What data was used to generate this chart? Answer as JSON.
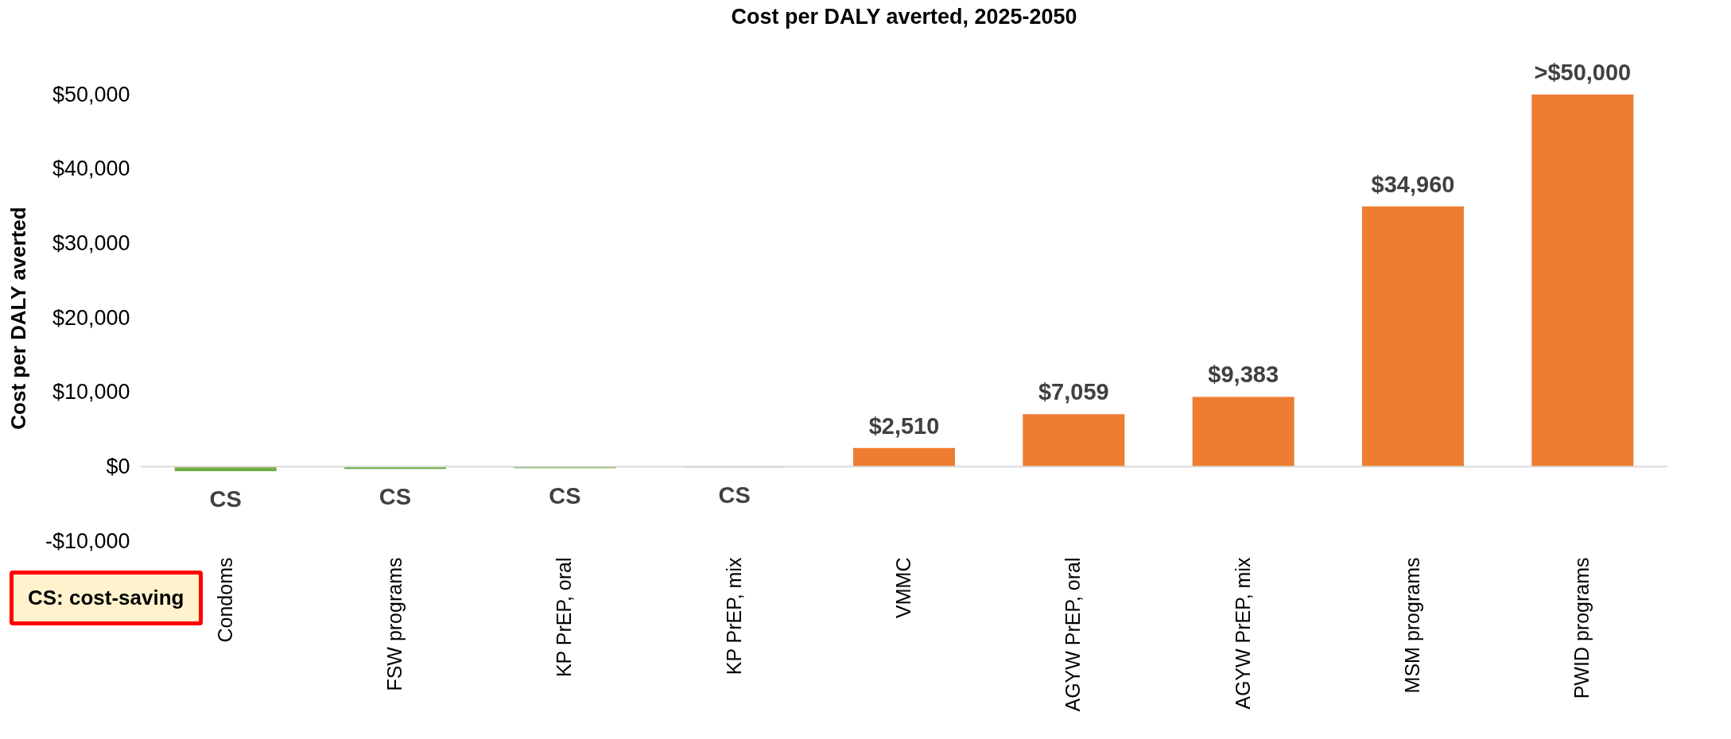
{
  "chart_data": {
    "type": "bar",
    "title": "Cost per DALY averted, 2025-2050",
    "ylabel": "Cost per DALY averted",
    "categories": [
      "Condoms",
      "FSW programs",
      "KP PrEP, oral",
      "KP PrEP, mix",
      "VMMC",
      "AGYW PrEP, oral",
      "AGYW PrEP, mix",
      "MSM programs",
      "PWID programs"
    ],
    "values": [
      -600,
      -300,
      -200,
      -100,
      2510,
      7059,
      9383,
      34960,
      50000
    ],
    "colors": [
      "#70ad47",
      "#70ad47",
      "#70ad47",
      "#70ad47",
      "#ed7d31",
      "#ed7d31",
      "#ed7d31",
      "#ed7d31",
      "#ed7d31"
    ],
    "value_labels": [
      "CS",
      "CS",
      "CS",
      "CS",
      "$2,510",
      "$7,059",
      "$9,383",
      "$34,960",
      ">$50,000"
    ],
    "ylim": [
      -10000,
      50000
    ],
    "yticks": [
      {
        "value": -10000,
        "label": "-$10,000"
      },
      {
        "value": 0,
        "label": "$0"
      },
      {
        "value": 10000,
        "label": "$10,000"
      },
      {
        "value": 20000,
        "label": "$20,000"
      },
      {
        "value": 30000,
        "label": "$30,000"
      },
      {
        "value": 40000,
        "label": "$40,000"
      },
      {
        "value": 50000,
        "label": "$50,000"
      }
    ],
    "grid": false,
    "ref_lines": [
      {
        "axis": "y",
        "value": 0,
        "color": "#d9d9d9"
      }
    ],
    "annotations": [
      "CS: cost-saving"
    ]
  }
}
